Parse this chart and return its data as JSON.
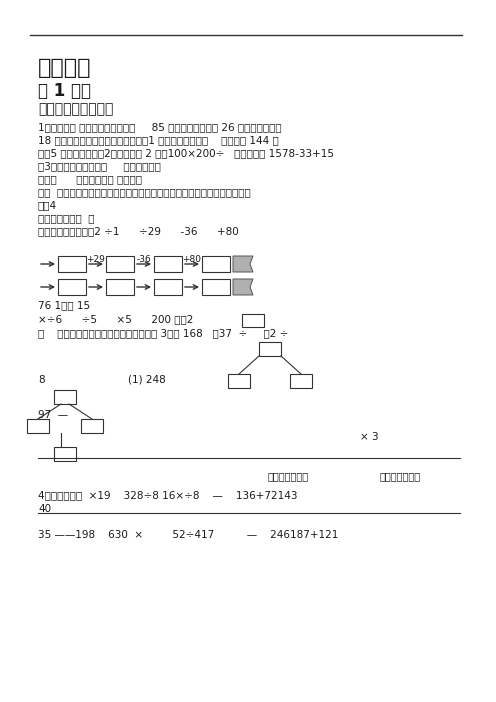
{
  "bg_color": "#ffffff",
  "text_color": "#1a1a1a",
  "line_color": "#333333",
  "title": "四则运算",
  "subtitle": "第 1 课时",
  "section": "加减、乘除混合运算",
  "body_lines": [
    "1、填一填。 绿色圃中小学教育＞     85 箱饮料，上午卖出 26 箱，下午又运来",
    "18 箱，超市现在有（）食品超市有（1 箱饮料。）千米。    小时行驶 144 千",
    "米，5 小时能行驶（（2）一辆轿车 2 时，100×200÷   ）法。计算 1578-33+15",
    "（3）计算时，要先算（     ）法，再算（",
    "）法。      ）法，再算（ 要先算（",
    "）往  ）在没有括的算式里，如果只有加、减法或者只有乘、除法，都要按从",
    "（（4",
    "）的顺序计算。  （",
    "、比一比，谁最快。2 ÷1      ÷29      -36      +80"
  ],
  "flow_ops_row1": [
    "+29",
    "-36",
    "+80"
  ],
  "flow_text_1": "76 1）（ 15",
  "flow_text_2": "×÷6      ÷5      ×5      200 ）（2",
  "fill_line": "、    里填上适当的数，然后列出综合算式 3、在 168   ＞37  ÷     （2 ÷",
  "label_8": "8",
  "label_248": "(1) 248",
  "label_97": "97  —",
  "label_x3": "× 3",
  "list_label1": "列出综合算式：",
  "list_label2": "列出综合算式：",
  "sec4": "4、脱式计算。  ×19    328÷8 16×÷8    —    136+72143",
  "sec4_40": "40",
  "last_row": "35 ——198    630  ×         52÷417          —    246187+121"
}
